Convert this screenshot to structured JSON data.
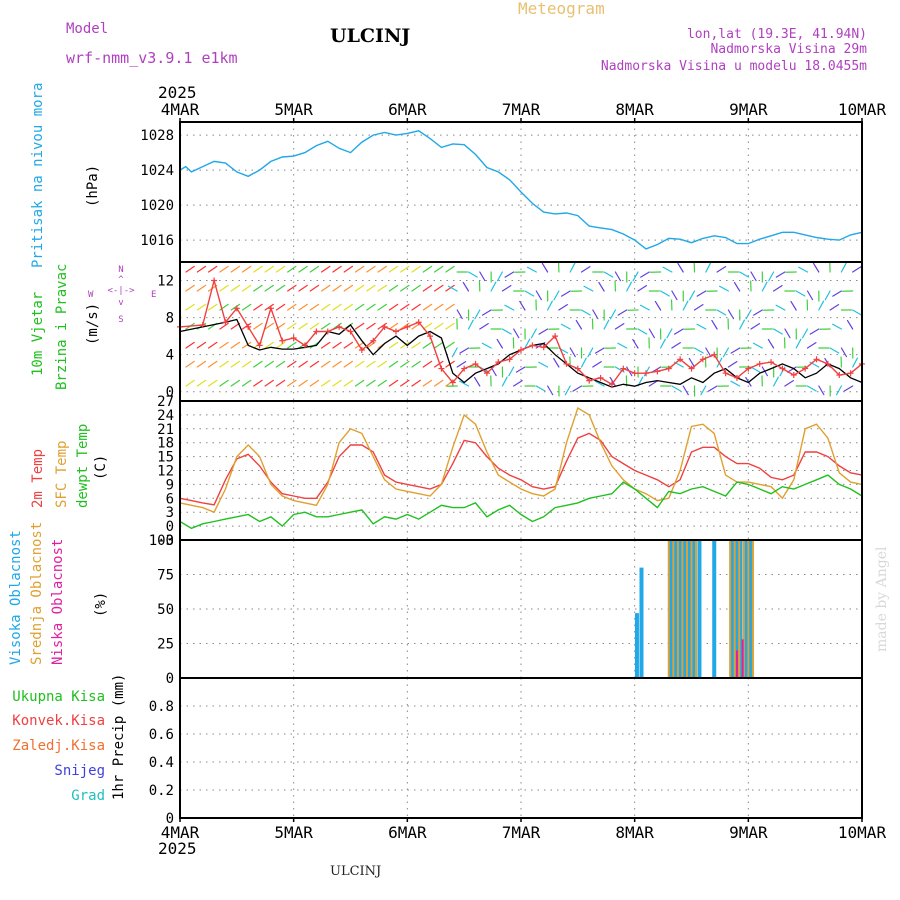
{
  "header": {
    "model_label": "Model",
    "model_name": "wrf-nmm_v3.9.1 e1km",
    "station": "ULCINJ",
    "title": "Meteogram",
    "coords": "lon,lat (19.3E, 41.94N)",
    "elevation": "Nadmorska Visina 29m",
    "model_elevation": "Nadmorska Visina u modelu 18.0455m",
    "footer": "ULCINJ",
    "credit": "made by Angel"
  },
  "axis": {
    "year": "2025",
    "dates": [
      "4MAR",
      "5MAR",
      "6MAR",
      "7MAR",
      "8MAR",
      "9MAR",
      "10MAR"
    ]
  },
  "labels": {
    "pressure": "Pritisak na nivou mora",
    "pressure_unit": "(hPa)",
    "wind_1": "10m Vjetar",
    "wind_2": "Brzina i Pravac",
    "wind_unit": "(m/s)",
    "compass_n": "N",
    "compass_s": "S",
    "compass_w": "W",
    "compass_e": "E",
    "temp_2m": "2m Temp",
    "temp_sfc": "SFC Temp",
    "temp_dewpt": "dewpt Temp",
    "temp_unit": "(C)",
    "cloud_high": "Visoka Oblacnost",
    "cloud_mid": "Srednja Oblacnost",
    "cloud_low": "Niska Oblacnost",
    "cloud_unit": "(%)",
    "precip_total": "Ukupna Kisa",
    "precip_conv": "Konvek.Kisa",
    "precip_frz": "Zaledj.Kisa",
    "precip_snow": "Snijeg",
    "precip_hail": "Grad",
    "precip_unit": "1hr Precip (mm)"
  },
  "colors": {
    "pressure": "#20a8e8",
    "temp_2m": "#f04040",
    "temp_sfc": "#e0a030",
    "dewpt": "#20c020",
    "cloud_high": "#20a8e8",
    "cloud_mid": "#e0a030",
    "cloud_low": "#e020a0",
    "wind_line": "#000000",
    "gust": "#f04040"
  },
  "chart_data": [
    {
      "type": "line",
      "panel": "pressure",
      "ylim": [
        1013.5,
        1029.5
      ],
      "yticks": [
        1016,
        1020,
        1024,
        1028
      ],
      "x_range_days": [
        0,
        6
      ],
      "series": [
        {
          "name": "Pritisak na nivou mora",
          "x": [
            0.0,
            0.05,
            0.1,
            0.2,
            0.3,
            0.4,
            0.5,
            0.6,
            0.7,
            0.8,
            0.9,
            1.0,
            1.1,
            1.2,
            1.3,
            1.4,
            1.5,
            1.6,
            1.7,
            1.8,
            1.9,
            2.0,
            2.1,
            2.2,
            2.3,
            2.4,
            2.5,
            2.6,
            2.7,
            2.8,
            2.9,
            3.0,
            3.1,
            3.2,
            3.3,
            3.4,
            3.5,
            3.6,
            3.7,
            3.8,
            3.9,
            4.0,
            4.1,
            4.2,
            4.3,
            4.4,
            4.5,
            4.6,
            4.7,
            4.8,
            4.9,
            5.0,
            5.1,
            5.2,
            5.3,
            5.4,
            5.5,
            5.6,
            5.7,
            5.8,
            5.9,
            6.0
          ],
          "values": [
            1024.0,
            1024.4,
            1023.8,
            1024.4,
            1025.0,
            1024.8,
            1023.8,
            1023.3,
            1024.0,
            1025.0,
            1025.5,
            1025.6,
            1026.0,
            1026.8,
            1027.3,
            1026.5,
            1026.0,
            1027.2,
            1028.0,
            1028.3,
            1028.0,
            1028.2,
            1028.5,
            1027.6,
            1026.6,
            1027.0,
            1026.9,
            1025.8,
            1024.3,
            1023.8,
            1022.9,
            1021.5,
            1020.2,
            1019.2,
            1019.0,
            1019.1,
            1018.8,
            1017.6,
            1017.4,
            1017.2,
            1016.7,
            1016.0,
            1015.0,
            1015.5,
            1016.2,
            1016.1,
            1015.7,
            1016.2,
            1016.5,
            1016.3,
            1015.6,
            1015.6,
            1016.1,
            1016.5,
            1016.9,
            1016.9,
            1016.6,
            1016.3,
            1016.1,
            1016.0,
            1016.6,
            1016.9
          ]
        }
      ]
    },
    {
      "type": "line",
      "panel": "wind",
      "ylim": [
        -1,
        14
      ],
      "yticks": [
        0,
        4,
        8,
        12
      ],
      "x_range_days": [
        0,
        6
      ],
      "series": [
        {
          "name": "10m Vjetar",
          "x": [
            0.0,
            0.2,
            0.4,
            0.5,
            0.6,
            0.7,
            0.8,
            0.9,
            1.0,
            1.1,
            1.2,
            1.3,
            1.4,
            1.5,
            1.6,
            1.7,
            1.8,
            1.9,
            2.0,
            2.1,
            2.2,
            2.3,
            2.4,
            2.5,
            2.6,
            2.7,
            2.8,
            2.9,
            3.0,
            3.1,
            3.2,
            3.3,
            3.4,
            3.5,
            3.6,
            3.7,
            3.8,
            3.9,
            4.0,
            4.1,
            4.2,
            4.3,
            4.4,
            4.5,
            4.6,
            4.7,
            4.8,
            4.9,
            5.0,
            5.1,
            5.2,
            5.3,
            5.4,
            5.5,
            5.6,
            5.7,
            5.8,
            5.9,
            6.0
          ],
          "values": [
            6.5,
            7.0,
            7.5,
            7.8,
            5.0,
            4.5,
            4.8,
            4.6,
            4.6,
            4.8,
            5.0,
            6.5,
            6.2,
            7.2,
            5.5,
            4.0,
            5.2,
            6.0,
            5.0,
            6.0,
            6.5,
            5.8,
            2.0,
            1.0,
            2.0,
            2.5,
            3.0,
            4.0,
            4.5,
            5.0,
            5.2,
            4.0,
            3.0,
            2.0,
            1.5,
            1.0,
            0.5,
            0.8,
            0.6,
            1.0,
            1.2,
            1.0,
            0.8,
            1.5,
            1.0,
            2.0,
            2.5,
            1.5,
            1.0,
            2.0,
            2.5,
            3.0,
            2.5,
            1.5,
            2.0,
            3.0,
            2.5,
            1.5,
            1.0
          ]
        },
        {
          "name": "gust",
          "x": [
            0.0,
            0.2,
            0.3,
            0.4,
            0.5,
            0.6,
            0.7,
            0.8,
            0.9,
            1.0,
            1.1,
            1.2,
            1.3,
            1.4,
            1.5,
            1.6,
            1.7,
            1.8,
            1.9,
            2.0,
            2.1,
            2.2,
            2.3,
            2.4,
            2.5,
            2.6,
            2.7,
            2.8,
            2.9,
            3.0,
            3.1,
            3.2,
            3.3,
            3.4,
            3.5,
            3.6,
            3.7,
            3.8,
            3.9,
            4.0,
            4.1,
            4.2,
            4.3,
            4.4,
            4.5,
            4.6,
            4.7,
            4.8,
            4.9,
            5.0,
            5.1,
            5.2,
            5.3,
            5.4,
            5.5,
            5.6,
            5.7,
            5.8,
            5.9,
            6.0
          ],
          "values": [
            7.0,
            7.2,
            12.0,
            7.5,
            9.0,
            7.0,
            5.0,
            9.0,
            5.5,
            5.8,
            5.0,
            6.5,
            6.5,
            7.0,
            6.5,
            4.5,
            5.5,
            7.0,
            6.5,
            7.0,
            7.5,
            6.0,
            2.5,
            1.0,
            2.5,
            3.0,
            2.0,
            3.2,
            3.5,
            4.5,
            5.0,
            4.8,
            6.0,
            3.0,
            2.5,
            1.2,
            1.5,
            0.8,
            2.5,
            2.0,
            2.0,
            2.2,
            2.5,
            3.5,
            2.5,
            3.5,
            4.0,
            2.0,
            1.5,
            2.5,
            3.0,
            3.2,
            2.5,
            1.8,
            2.5,
            3.5,
            3.0,
            1.8,
            2.0,
            3.0
          ]
        }
      ]
    },
    {
      "type": "line",
      "panel": "temperature",
      "ylim": [
        -3,
        27
      ],
      "yticks": [
        -3,
        0,
        3,
        6,
        9,
        12,
        15,
        18,
        21,
        24,
        27
      ],
      "x_range_days": [
        0,
        6
      ],
      "series": [
        {
          "name": "2m Temp",
          "x": [
            0.0,
            0.1,
            0.2,
            0.3,
            0.4,
            0.5,
            0.6,
            0.7,
            0.8,
            0.9,
            1.0,
            1.1,
            1.2,
            1.3,
            1.4,
            1.5,
            1.6,
            1.7,
            1.8,
            1.9,
            2.0,
            2.1,
            2.2,
            2.3,
            2.4,
            2.5,
            2.6,
            2.7,
            2.8,
            2.9,
            3.0,
            3.1,
            3.2,
            3.3,
            3.4,
            3.5,
            3.6,
            3.7,
            3.8,
            3.9,
            4.0,
            4.1,
            4.2,
            4.3,
            4.4,
            4.5,
            4.6,
            4.7,
            4.8,
            4.9,
            5.0,
            5.1,
            5.2,
            5.3,
            5.4,
            5.5,
            5.6,
            5.7,
            5.8,
            5.9,
            6.0
          ],
          "values": [
            6.0,
            5.5,
            5.0,
            4.6,
            10.0,
            14.5,
            15.5,
            13.0,
            9.5,
            7.0,
            6.5,
            6.0,
            6.0,
            9.5,
            15.0,
            17.5,
            17.5,
            16.0,
            11.0,
            9.5,
            9.0,
            8.5,
            8.0,
            9.0,
            13.5,
            18.5,
            18.0,
            15.0,
            12.5,
            11.0,
            10.0,
            8.5,
            8.0,
            8.5,
            14.0,
            19.0,
            20.0,
            18.5,
            15.0,
            13.5,
            12.0,
            11.0,
            10.0,
            8.5,
            10.0,
            16.0,
            17.0,
            17.0,
            15.0,
            13.5,
            13.5,
            12.5,
            10.5,
            10.0,
            11.0,
            16.0,
            16.0,
            15.0,
            13.0,
            11.5,
            11.0
          ]
        },
        {
          "name": "SFC Temp",
          "x": [
            0.0,
            0.1,
            0.2,
            0.3,
            0.4,
            0.5,
            0.6,
            0.7,
            0.8,
            0.9,
            1.0,
            1.1,
            1.2,
            1.3,
            1.4,
            1.5,
            1.6,
            1.7,
            1.8,
            1.9,
            2.0,
            2.1,
            2.2,
            2.3,
            2.4,
            2.5,
            2.6,
            2.7,
            2.8,
            2.9,
            3.0,
            3.1,
            3.2,
            3.3,
            3.4,
            3.5,
            3.6,
            3.7,
            3.8,
            3.9,
            4.0,
            4.1,
            4.2,
            4.3,
            4.4,
            4.5,
            4.6,
            4.7,
            4.8,
            4.9,
            5.0,
            5.1,
            5.2,
            5.3,
            5.4,
            5.5,
            5.6,
            5.7,
            5.8,
            5.9,
            6.0
          ],
          "values": [
            5.0,
            4.5,
            4.0,
            3.0,
            8.0,
            15.0,
            17.5,
            15.0,
            9.0,
            6.5,
            5.5,
            5.0,
            4.5,
            9.0,
            18.0,
            21.0,
            20.0,
            15.0,
            10.0,
            8.0,
            7.5,
            7.0,
            6.5,
            9.0,
            17.0,
            24.0,
            22.0,
            16.0,
            11.0,
            9.5,
            8.0,
            7.0,
            6.5,
            8.0,
            18.0,
            25.5,
            24.0,
            18.0,
            13.0,
            10.0,
            8.0,
            7.0,
            5.5,
            6.0,
            12.0,
            21.5,
            22.0,
            20.0,
            11.0,
            9.5,
            9.5,
            9.0,
            8.5,
            6.0,
            10.0,
            21.0,
            22.0,
            19.0,
            11.5,
            9.5,
            9.0
          ]
        },
        {
          "name": "dewpt Temp",
          "x": [
            0.0,
            0.1,
            0.2,
            0.3,
            0.4,
            0.5,
            0.6,
            0.7,
            0.8,
            0.9,
            1.0,
            1.1,
            1.2,
            1.3,
            1.4,
            1.5,
            1.6,
            1.7,
            1.8,
            1.9,
            2.0,
            2.1,
            2.2,
            2.3,
            2.4,
            2.5,
            2.6,
            2.7,
            2.8,
            2.9,
            3.0,
            3.1,
            3.2,
            3.3,
            3.4,
            3.5,
            3.6,
            3.7,
            3.8,
            3.9,
            4.0,
            4.1,
            4.2,
            4.3,
            4.4,
            4.5,
            4.6,
            4.7,
            4.8,
            4.9,
            5.0,
            5.1,
            5.2,
            5.3,
            5.4,
            5.5,
            5.6,
            5.7,
            5.8,
            5.9,
            6.0
          ],
          "values": [
            1.0,
            -0.5,
            0.5,
            1.0,
            1.5,
            2.0,
            2.5,
            1.0,
            2.0,
            0.0,
            2.5,
            3.0,
            2.0,
            2.0,
            2.5,
            3.0,
            3.5,
            0.5,
            2.0,
            1.5,
            2.5,
            1.5,
            3.0,
            4.5,
            4.0,
            4.0,
            5.0,
            2.0,
            3.5,
            4.5,
            2.5,
            1.0,
            2.0,
            4.0,
            4.5,
            5.0,
            6.0,
            6.5,
            7.0,
            9.5,
            8.0,
            6.0,
            4.0,
            7.5,
            7.0,
            8.0,
            8.5,
            7.5,
            6.5,
            9.5,
            9.0,
            8.0,
            7.0,
            8.5,
            8.0,
            9.0,
            10.0,
            11.0,
            9.0,
            8.0,
            6.5
          ]
        }
      ]
    },
    {
      "type": "bar",
      "panel": "clouds",
      "ylim": [
        0,
        100
      ],
      "yticks": [
        0,
        25,
        50,
        75,
        100
      ],
      "x_range_days": [
        0,
        6
      ],
      "series": [
        {
          "name": "Visoka Oblacnost",
          "x": [
            4.02,
            4.06,
            4.32,
            4.36,
            4.4,
            4.44,
            4.48,
            4.52,
            4.57,
            4.7,
            4.86,
            4.9,
            4.93,
            4.97,
            5.0,
            5.03
          ],
          "values": [
            47,
            80,
            100,
            100,
            100,
            100,
            100,
            100,
            100,
            100,
            100,
            100,
            100,
            100,
            100,
            100
          ]
        },
        {
          "name": "Srednja Oblacnost",
          "x": [
            4.3,
            4.34,
            4.38,
            4.42,
            4.46,
            4.5,
            4.54,
            4.84,
            4.88,
            4.92,
            4.96,
            5.0,
            5.04
          ],
          "values": [
            100,
            100,
            100,
            100,
            100,
            100,
            100,
            100,
            100,
            100,
            100,
            100,
            100
          ]
        },
        {
          "name": "Niska Oblacnost",
          "x": [
            4.9,
            4.95
          ],
          "values": [
            20,
            28
          ]
        }
      ]
    },
    {
      "type": "line",
      "panel": "precipitation",
      "ylim": [
        0,
        1.0
      ],
      "yticks": [
        0,
        0.2,
        0.4,
        0.6,
        0.8
      ],
      "x_range_days": [
        0,
        6
      ],
      "series": [
        {
          "name": "Ukupna Kisa",
          "x": [
            0,
            6
          ],
          "values": [
            0,
            0
          ]
        }
      ]
    }
  ]
}
